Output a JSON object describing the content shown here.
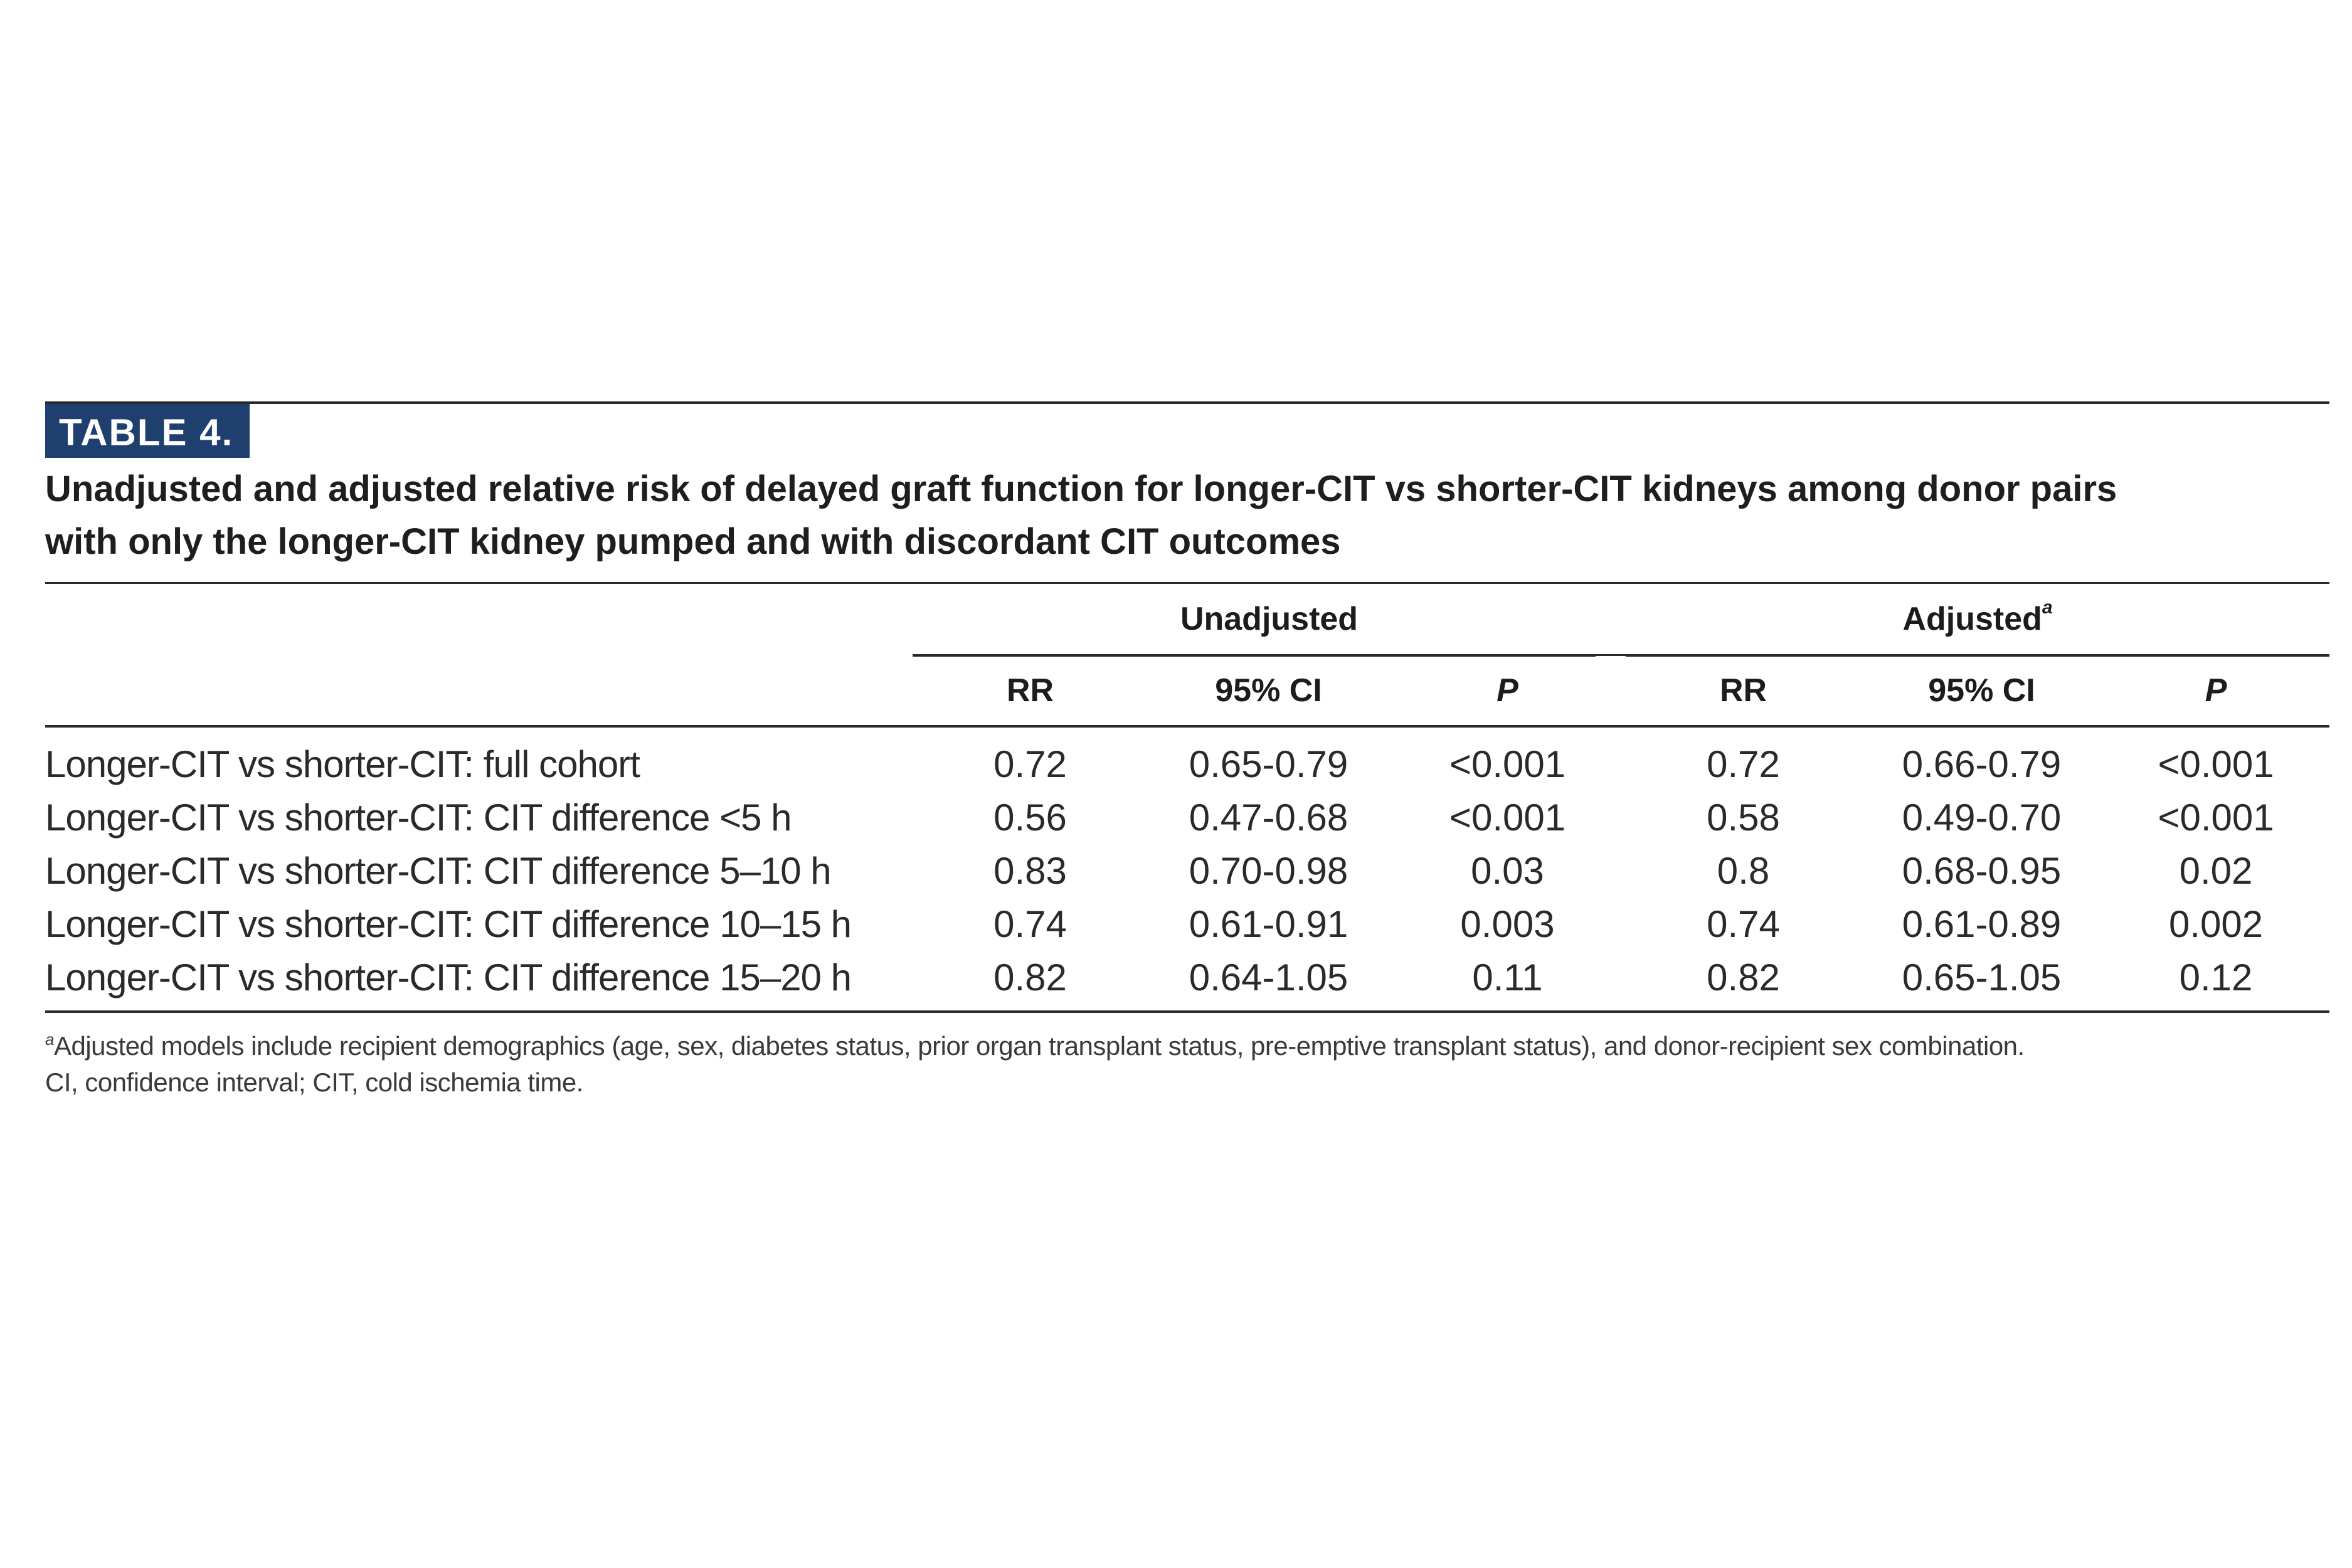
{
  "table": {
    "label": "TABLE 4.",
    "caption": [
      "Unadjusted and adjusted relative risk of delayed graft function for longer-CIT vs shorter-CIT kidneys among donor pairs",
      "with only the longer-CIT kidney pumped and with discordant CIT outcomes"
    ],
    "groups": {
      "unadjusted": "Unadjusted",
      "adjusted": "Adjusted",
      "adjusted_marker": "a"
    },
    "columns": [
      "RR",
      "95% CI",
      "P",
      "RR",
      "95% CI",
      "P"
    ],
    "rows": [
      {
        "label": "Longer-CIT vs shorter-CIT: full cohort",
        "cells": [
          "0.72",
          "0.65-0.79",
          "<0.001",
          "0.72",
          "0.66-0.79",
          "<0.001"
        ]
      },
      {
        "label": "Longer-CIT vs shorter-CIT: CIT difference <5 h",
        "cells": [
          "0.56",
          "0.47-0.68",
          "<0.001",
          "0.58",
          "0.49-0.70",
          "<0.001"
        ]
      },
      {
        "label": "Longer-CIT vs shorter-CIT: CIT difference 5–10 h",
        "cells": [
          "0.83",
          "0.70-0.98",
          "0.03",
          "0.8",
          "0.68-0.95",
          "0.02"
        ]
      },
      {
        "label": "Longer-CIT vs shorter-CIT: CIT difference 10–15 h",
        "cells": [
          "0.74",
          "0.61-0.91",
          "0.003",
          "0.74",
          "0.61-0.89",
          "0.002"
        ]
      },
      {
        "label": "Longer-CIT vs shorter-CIT: CIT difference 15–20 h",
        "cells": [
          "0.82",
          "0.64-1.05",
          "0.11",
          "0.82",
          "0.65-1.05",
          "0.12"
        ]
      }
    ],
    "footnotes": {
      "marker": "a",
      "adjusted_note": "Adjusted models include recipient demographics (age, sex, diabetes status, prior organ transplant status, pre-emptive transplant status), and donor-recipient sex combination.",
      "abbreviations": "CI, confidence interval; CIT, cold ischemia time."
    }
  }
}
